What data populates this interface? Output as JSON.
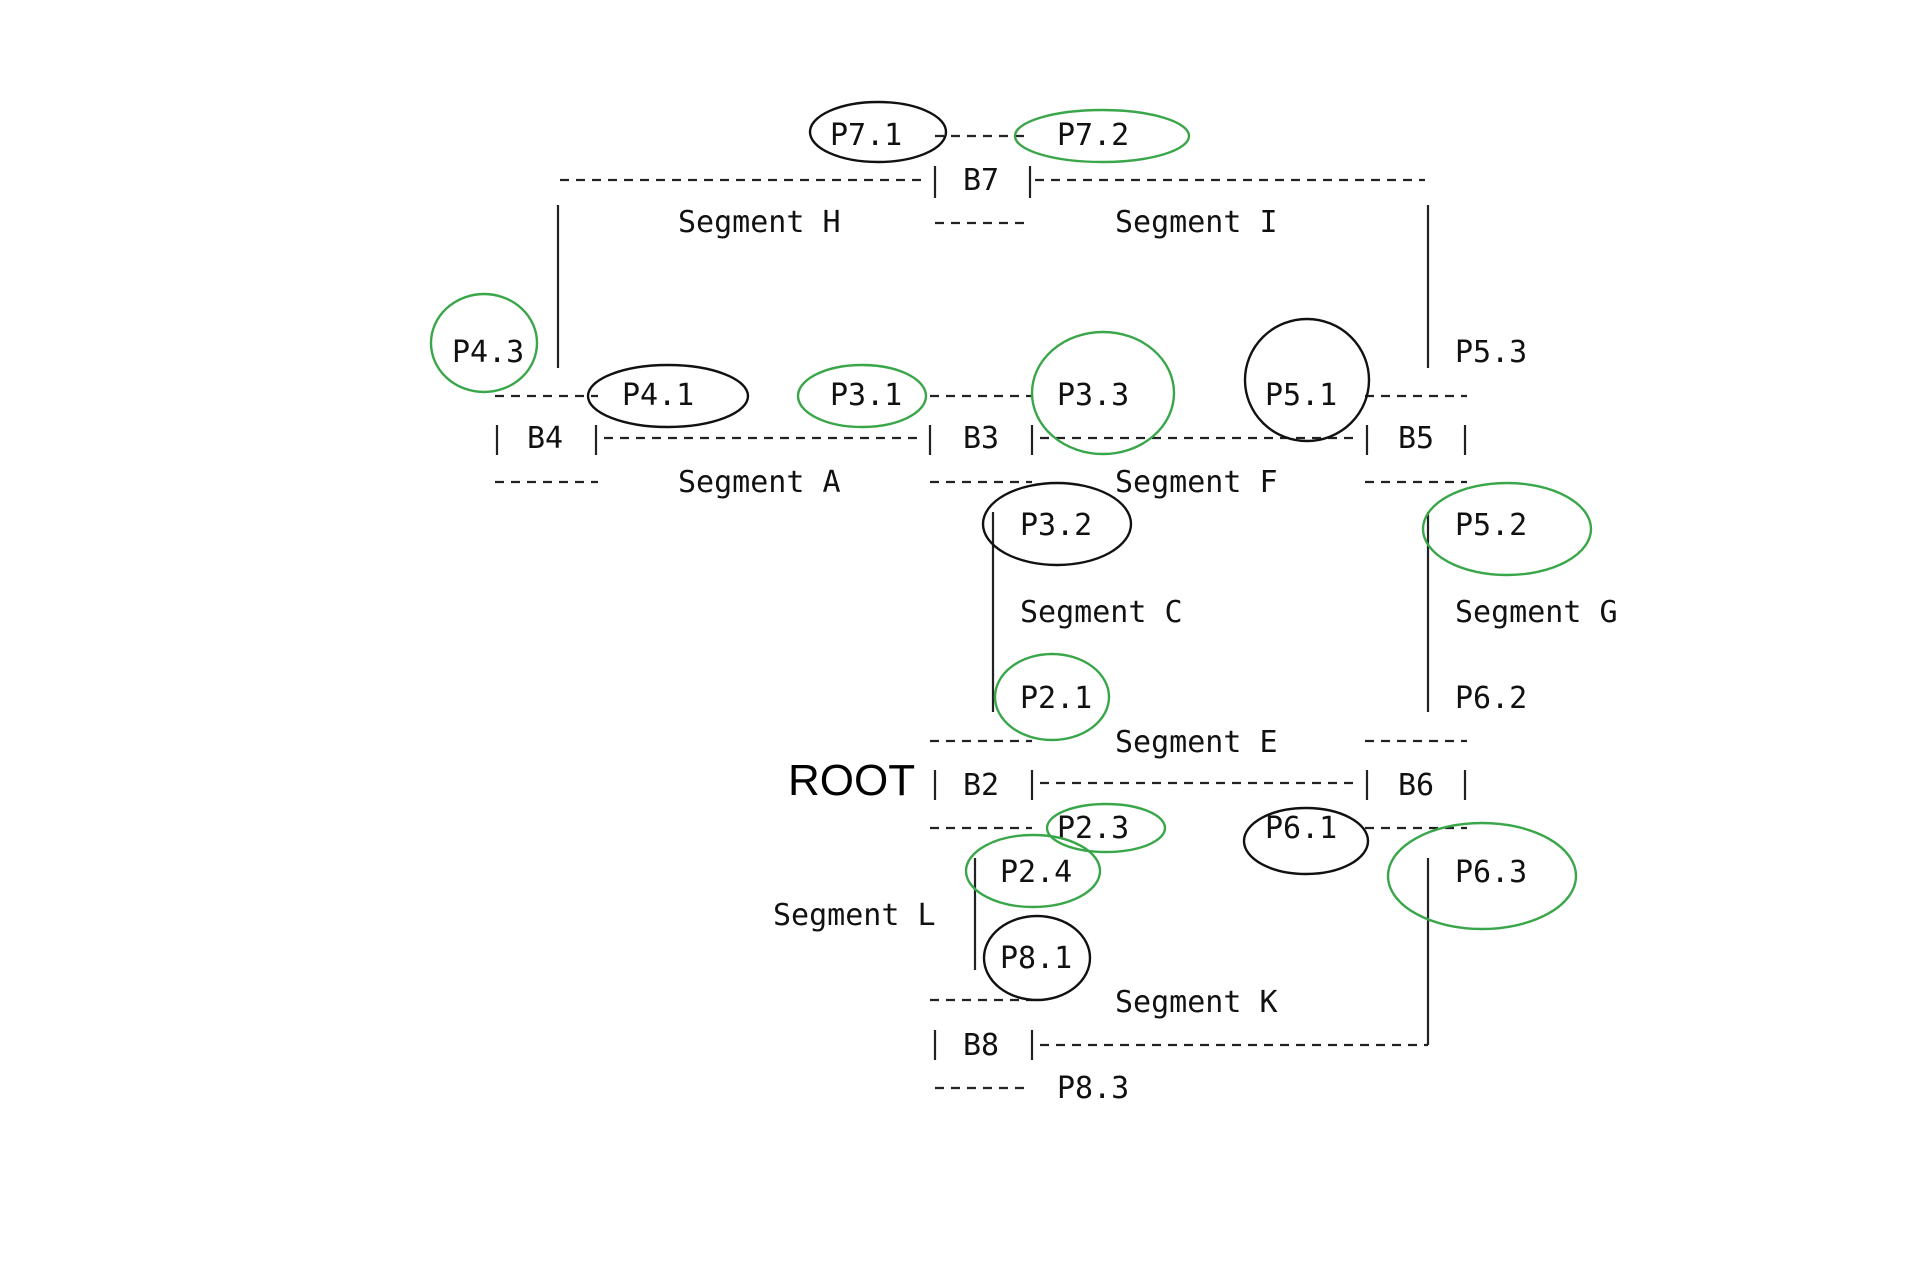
{
  "colors": {
    "port_green": "#3aa64a",
    "port_black": "#111111"
  },
  "root_label": "ROOT",
  "bridges": {
    "b2": "B2",
    "b3": "B3",
    "b4": "B4",
    "b5": "B5",
    "b6": "B6",
    "b7": "B7",
    "b8": "B8"
  },
  "segments": {
    "a": "Segment A",
    "c": "Segment C",
    "e": "Segment E",
    "f": "Segment F",
    "g": "Segment G",
    "h": "Segment H",
    "i": "Segment I",
    "k": "Segment K",
    "l": "Segment L"
  },
  "ports": {
    "p2_1": {
      "label": "P2.1",
      "ring": "green"
    },
    "p2_3": {
      "label": "P2.3",
      "ring": "green"
    },
    "p2_4": {
      "label": "P2.4",
      "ring": "green"
    },
    "p3_1": {
      "label": "P3.1",
      "ring": "green"
    },
    "p3_2": {
      "label": "P3.2",
      "ring": "black"
    },
    "p3_3": {
      "label": "P3.3",
      "ring": "green"
    },
    "p4_1": {
      "label": "P4.1",
      "ring": "black"
    },
    "p4_3": {
      "label": "P4.3",
      "ring": "green"
    },
    "p5_1": {
      "label": "P5.1",
      "ring": "black"
    },
    "p5_2": {
      "label": "P5.2",
      "ring": "green"
    },
    "p5_3": {
      "label": "P5.3",
      "ring": "none"
    },
    "p6_1": {
      "label": "P6.1",
      "ring": "black"
    },
    "p6_2": {
      "label": "P6.2",
      "ring": "none"
    },
    "p6_3": {
      "label": "P6.3",
      "ring": "green"
    },
    "p7_1": {
      "label": "P7.1",
      "ring": "black"
    },
    "p7_2": {
      "label": "P7.2",
      "ring": "green"
    },
    "p8_1": {
      "label": "P8.1",
      "ring": "black"
    },
    "p8_3": {
      "label": "P8.3",
      "ring": "none"
    }
  }
}
